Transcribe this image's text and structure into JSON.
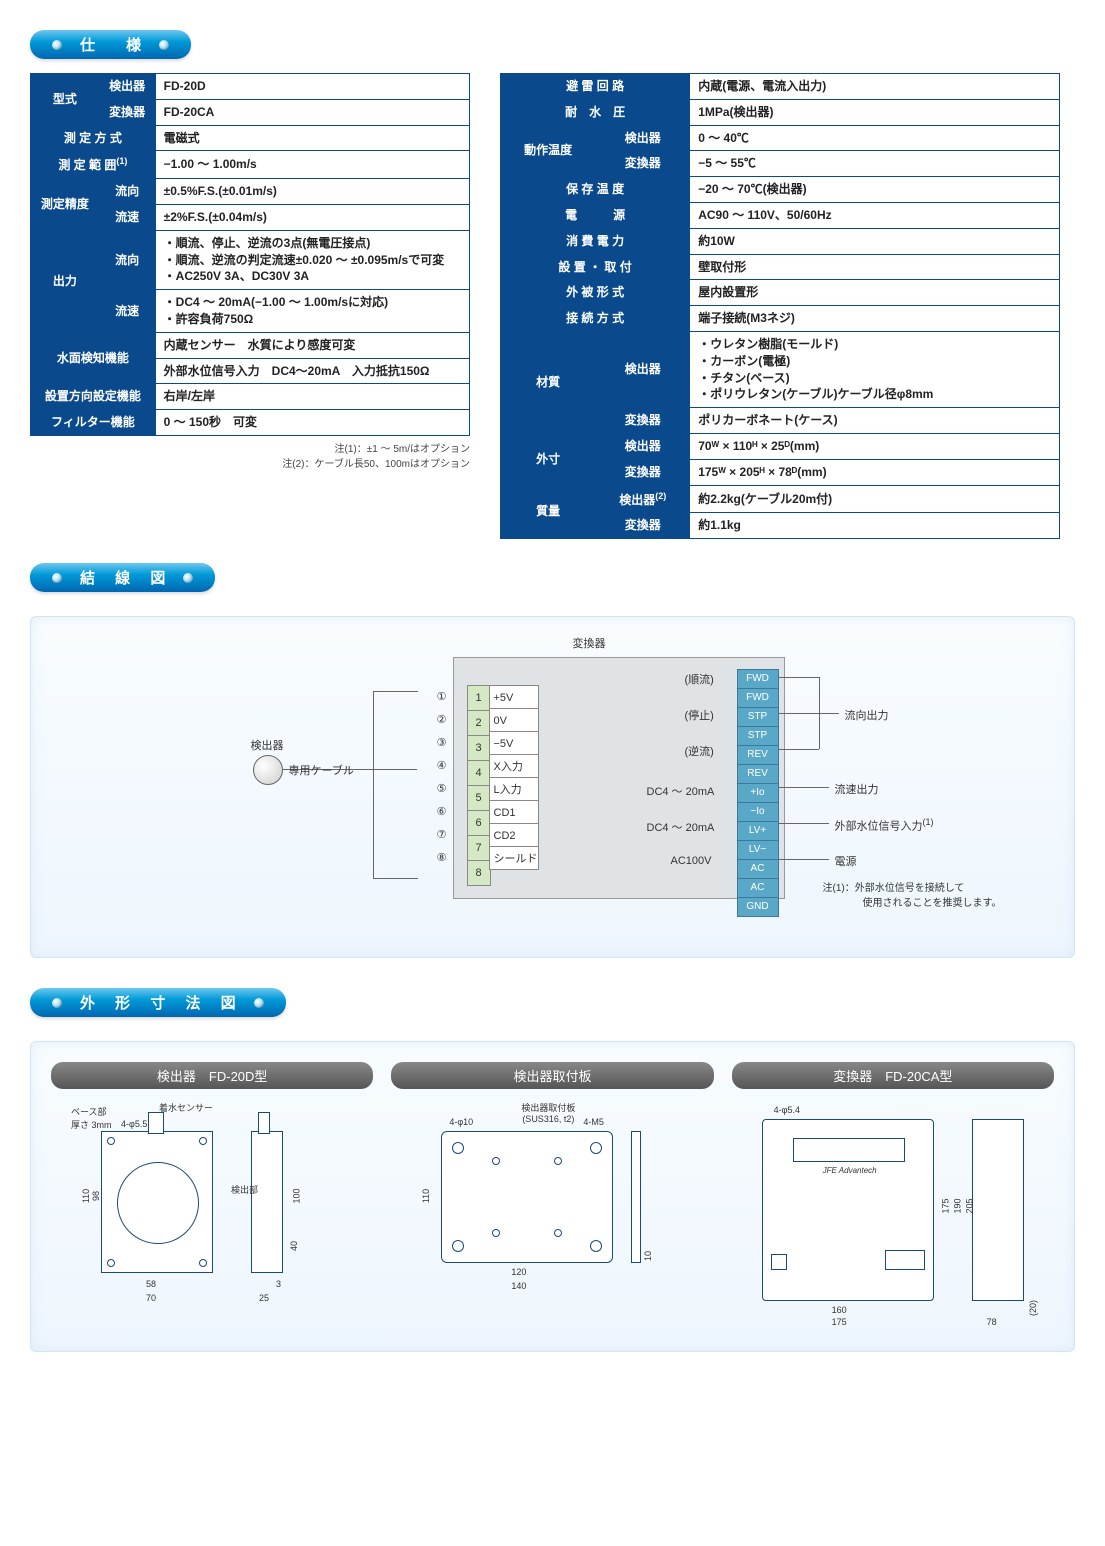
{
  "headers": {
    "spec": "仕　様",
    "wiring": "結 線 図",
    "dims": "外 形 寸 法 図"
  },
  "left_spec": {
    "r1": {
      "h1": "型式",
      "h2": "検出器",
      "v": "FD-20D"
    },
    "r2": {
      "h2": "変換器",
      "v": "FD-20CA"
    },
    "r3": {
      "h": "測 定 方 式",
      "v": "電磁式"
    },
    "r4": {
      "h": "測 定 範 囲",
      "n": "(1)",
      "v": "−1.00 ～ 1.00m/s"
    },
    "r5": {
      "h1": "測定精度",
      "h2": "流向",
      "v": "±0.5%F.S.(±0.01m/s)"
    },
    "r6": {
      "h2": "流速",
      "v": "±2%F.S.(±0.04m/s)"
    },
    "r7": {
      "h1": "出力",
      "h2": "流向",
      "v": "・順流、停止、逆流の3点(無電圧接点)\n・順流、逆流の判定流速±0.020 ～ ±0.095m/sで可変\n・AC250V 3A、DC30V 3A"
    },
    "r8": {
      "h2": "流速",
      "v": "・DC4 ～ 20mA(−1.00 ～ 1.00m/sに対応)\n・許容負荷750Ω"
    },
    "r9": {
      "h": "水面検知機能",
      "v1": "内蔵センサー　水質により感度可変",
      "v2": "外部水位信号入力　DC4～20mA　入力抵抗150Ω"
    },
    "r10": {
      "h": "設置方向設定機能",
      "v": "右岸/左岸"
    },
    "r11": {
      "h": "フィルター機能",
      "v": "0 ～ 150秒　可変"
    }
  },
  "left_notes": {
    "n1": "注(1)：±1 ～ 5m/はオプション",
    "n2": "注(2)：ケーブル長50、100mはオプション"
  },
  "right_spec": {
    "r1": {
      "h": "避 雷 回 路",
      "v": "内蔵(電源、電流入出力)"
    },
    "r2": {
      "h": "耐　水　圧",
      "v": "1MPa(検出器)"
    },
    "r3": {
      "h1": "動作温度",
      "h2": "検出器",
      "v": "0 ～ 40℃"
    },
    "r4": {
      "h2": "変換器",
      "v": "−5 ～ 55℃"
    },
    "r5": {
      "h": "保 存 温 度",
      "v": "−20 ～ 70℃(検出器)"
    },
    "r6": {
      "h": "電　　　源",
      "v": "AC90 ～ 110V、50/60Hz"
    },
    "r7": {
      "h": "消 費 電 力",
      "v": "約10W"
    },
    "r8": {
      "h": "設 置 ・ 取 付",
      "v": "壁取付形"
    },
    "r9": {
      "h": "外 被 形 式",
      "v": "屋内設置形"
    },
    "r10": {
      "h": "接 続 方 式",
      "v": "端子接続(M3ネジ)"
    },
    "r11": {
      "h1": "材質",
      "h2": "検出器",
      "v": "・ウレタン樹脂(モールド)\n・カーボン(電極)\n・チタン(ベース)\n・ポリウレタン(ケーブル)ケーブル径φ8mm"
    },
    "r12": {
      "h2": "変換器",
      "v": "ポリカーボネート(ケース)"
    },
    "r13": {
      "h1": "外寸",
      "h2": "検出器",
      "v": "70ᵂ × 110ᴴ × 25ᴰ(mm)"
    },
    "r14": {
      "h2": "変換器",
      "v": "175ᵂ × 205ᴴ × 78ᴰ(mm)"
    },
    "r15": {
      "h1": "質量",
      "h2": "検出器",
      "n": "(2)",
      "v": "約2.2kg(ケーブル20m付)"
    },
    "r16": {
      "h2": "変換器",
      "v": "約1.1kg"
    }
  },
  "wiring": {
    "converter": "変換器",
    "detector": "検出器",
    "cable": "専用ケーブル",
    "left_terms": [
      {
        "n": "1",
        "l": "+5V"
      },
      {
        "n": "2",
        "l": "0V"
      },
      {
        "n": "3",
        "l": "−5V"
      },
      {
        "n": "4",
        "l": "X入力"
      },
      {
        "n": "5",
        "l": "L入力"
      },
      {
        "n": "6",
        "l": "CD1"
      },
      {
        "n": "7",
        "l": "CD2"
      },
      {
        "n": "8",
        "l": "シールド"
      }
    ],
    "left_circ": [
      "①",
      "②",
      "③",
      "④",
      "⑤",
      "⑥",
      "⑦",
      "⑧"
    ],
    "right_terms": [
      "FWD",
      "FWD",
      "STP",
      "STP",
      "REV",
      "REV",
      "+Io",
      "−Io",
      "LV+",
      "LV−",
      "AC",
      "AC",
      "GND"
    ],
    "mid_labels": {
      "fwd": "(順流)",
      "stp": "(停止)",
      "rev": "(逆流)",
      "dc1": "DC4 ～ 20mA",
      "dc2": "DC4 ～ 20mA",
      "ac": "AC100V"
    },
    "out_labels": {
      "dir": "流向出力",
      "spd": "流速出力",
      "ext": "外部水位信号入力",
      "extn": "(1)",
      "pwr": "電源"
    },
    "note": "注(1)：外部水位信号を接続して\n　　　　使用されることを推奨します。"
  },
  "dims": {
    "t1": "検出器　FD-20D型",
    "t2": "検出器取付板",
    "t3": "変換器　FD-20CA型",
    "d1": {
      "base": "ベース部\n厚さ 3mm",
      "sensor": "着水センサー",
      "holes": "4-φ5.5",
      "det": "検出部",
      "w": "70",
      "w2": "58",
      "h": "110",
      "h2": "98",
      "h3": "100",
      "h4": "40",
      "d": "25",
      "d2": "3"
    },
    "d2": {
      "title": "検出器取付板\n(SUS316, t2)",
      "holes": "4-φ10",
      "m5": "4-M5",
      "w": "140",
      "w2": "120",
      "h": "110",
      "d": "10"
    },
    "d3": {
      "holes": "4-φ5.4",
      "brand": "JFE Advantech",
      "w": "175",
      "w2": "160",
      "h": "205",
      "h2": "190",
      "h3": "175",
      "d": "78",
      "d2": "(20)"
    }
  },
  "colors": {
    "header_blue": "#0a4a8c",
    "terminal_green": "#d4e8c4",
    "terminal_blue": "#5aa8c8",
    "panel_bg": "#f0f7fc"
  }
}
